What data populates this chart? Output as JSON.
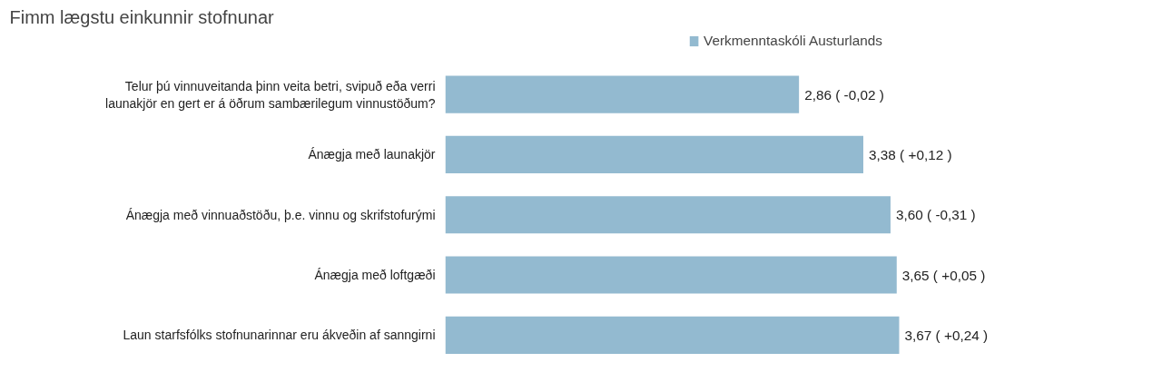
{
  "chart_data": {
    "type": "bar",
    "orientation": "horizontal",
    "title": "Fimm lægstu einkunnir stofnunar",
    "categories": [
      "Telur þú vinnuveitanda þinn veita betri, svipuð eða verri launakjör en gert er á öðrum sambærilegum vinnustöðum?",
      "Ánægja með launakjör",
      "Ánægja með vinnuaðstöðu, þ.e. vinnu og skrifstofurými",
      "Ánægja með loftgæði",
      "Laun starfsfólks stofnunarinnar eru ákveðin af sanngirni"
    ],
    "series": [
      {
        "name": "Verkmenntaskóli Austurlands",
        "color": "#93bad0",
        "values": [
          2.86,
          3.38,
          3.6,
          3.65,
          3.67
        ],
        "value_labels": [
          "2,86 ( -0,02 )",
          "3,38 ( +0,12 )",
          "3,60 ( -0,31 )",
          "3,65 ( +0,05 )",
          "3,67 ( +0,24 )"
        ]
      }
    ],
    "tick_labels": "y",
    "grid": false,
    "legend": "top"
  }
}
